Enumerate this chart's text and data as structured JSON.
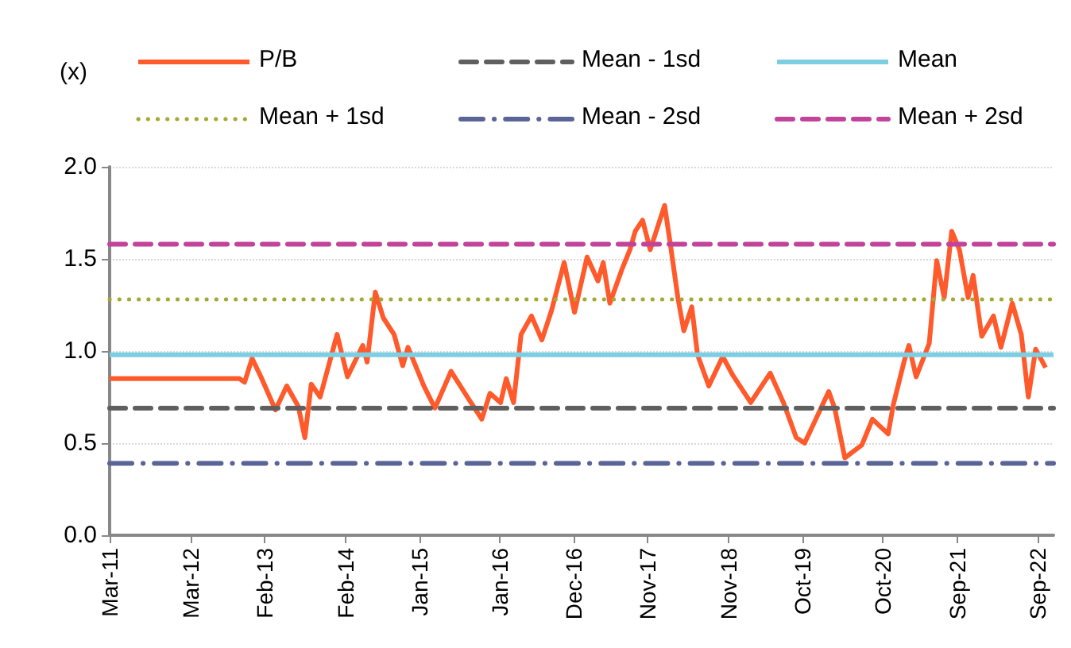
{
  "chart_data": {
    "type": "line",
    "ylabel": "(x)",
    "xlim": [
      "2011-03-01",
      "2022-11-12"
    ],
    "xticks": [
      {
        "value": "2011-03",
        "label": "Mar-11"
      },
      {
        "value": "2012-03",
        "label": "Mar-12"
      },
      {
        "value": "2013-02",
        "label": "Feb-13"
      },
      {
        "value": "2014-02",
        "label": "Feb-14"
      },
      {
        "value": "2015-01",
        "label": "Jan-15"
      },
      {
        "value": "2016-01",
        "label": "Jan-16"
      },
      {
        "value": "2016-12",
        "label": "Dec-16"
      },
      {
        "value": "2017-11",
        "label": "Nov-17"
      },
      {
        "value": "2018-11",
        "label": "Nov-18"
      },
      {
        "value": "2019-10",
        "label": "Oct-19"
      },
      {
        "value": "2020-10",
        "label": "Oct-20"
      },
      {
        "value": "2021-09",
        "label": "Sep-21"
      },
      {
        "value": "2022-09",
        "label": "Sep-22"
      }
    ],
    "ylim": [
      0,
      2
    ],
    "yticks": [
      {
        "value": 0,
        "label": "0.0"
      },
      {
        "value": 0.5,
        "label": "0.5"
      },
      {
        "value": 1,
        "label": "1.0"
      },
      {
        "value": 1.5,
        "label": "1.5"
      },
      {
        "value": 2,
        "label": "2.0"
      }
    ],
    "grid": "y",
    "legend": "top",
    "marker": "none",
    "series": [
      {
        "name": "P/B",
        "color": "#ff5a2c",
        "line_style": "solid",
        "x": [
          "2011-03-01",
          "2012-10-09",
          "2012-11-01",
          "2012-12-05",
          "2013-01-14",
          "2013-03-21",
          "2013-05-11",
          "2013-07-02",
          "2013-08-01",
          "2013-08-30",
          "2013-10-09",
          "2013-12-25",
          "2014-02-10",
          "2014-04-20",
          "2014-05-10",
          "2014-06-16",
          "2014-07-22",
          "2014-09-09",
          "2014-10-18",
          "2014-11-11",
          "2015-01-22",
          "2015-03-13",
          "2015-05-25",
          "2015-08-07",
          "2015-10-11",
          "2015-11-17",
          "2016-01-04",
          "2016-01-30",
          "2016-03-03",
          "2016-04-06",
          "2016-05-23",
          "2016-07-09",
          "2016-08-22",
          "2016-10-18",
          "2016-12-04",
          "2017-01-30",
          "2017-03-20",
          "2017-04-13",
          "2017-05-13",
          "2017-07-09",
          "2017-08-12",
          "2017-09-05",
          "2017-10-08",
          "2017-11-12",
          "2018-01-16",
          "2018-02-11",
          "2018-03-17",
          "2018-04-13",
          "2018-05-19",
          "2018-06-14",
          "2018-08-04",
          "2018-10-06",
          "2018-11-20",
          "2019-02-10",
          "2019-05-09",
          "2019-07-08",
          "2019-09-04",
          "2019-10-12",
          "2020-01-29",
          "2020-02-25",
          "2020-04-11",
          "2020-06-27",
          "2020-08-14",
          "2020-10-24",
          "2020-11-17",
          "2021-01-06",
          "2021-01-26",
          "2021-02-28",
          "2021-04-28",
          "2021-06-01",
          "2021-07-05",
          "2021-08-08",
          "2021-09-12",
          "2021-10-21",
          "2021-11-13",
          "2021-12-22",
          "2022-02-13",
          "2022-03-19",
          "2022-05-09",
          "2022-06-19",
          "2022-07-21",
          "2022-08-23",
          "2022-10-07"
        ],
        "values": [
          0.85,
          0.85,
          0.83,
          0.96,
          0.86,
          0.68,
          0.81,
          0.7,
          0.53,
          0.82,
          0.75,
          1.09,
          0.86,
          1.03,
          0.94,
          1.32,
          1.18,
          1.09,
          0.92,
          1.02,
          0.81,
          0.69,
          0.89,
          0.75,
          0.63,
          0.77,
          0.72,
          0.85,
          0.72,
          1.09,
          1.19,
          1.06,
          1.22,
          1.48,
          1.21,
          1.51,
          1.38,
          1.48,
          1.26,
          1.45,
          1.55,
          1.65,
          1.71,
          1.55,
          1.79,
          1.58,
          1.29,
          1.11,
          1.24,
          0.98,
          0.81,
          0.97,
          0.87,
          0.72,
          0.88,
          0.72,
          0.53,
          0.5,
          0.78,
          0.69,
          0.42,
          0.49,
          0.63,
          0.55,
          0.71,
          0.95,
          1.03,
          0.86,
          1.04,
          1.49,
          1.29,
          1.65,
          1.55,
          1.29,
          1.41,
          1.08,
          1.19,
          1.02,
          1.26,
          1.09,
          0.75,
          1.01,
          0.91
        ]
      },
      {
        "name": "Mean - 1sd",
        "color": "#5f5f5f",
        "line_style": "dashed",
        "x": [
          "2011-03-01",
          "2022-11-12"
        ],
        "values": [
          0.69,
          0.69
        ]
      },
      {
        "name": "Mean",
        "color": "#7ccfe3",
        "line_style": "solid",
        "x": [
          "2011-03-01",
          "2022-11-12"
        ],
        "values": [
          0.98,
          0.98
        ]
      },
      {
        "name": "Mean + 1sd",
        "color": "#a5a832",
        "line_style": "dotted",
        "x": [
          "2011-03-01",
          "2022-11-12"
        ],
        "values": [
          1.28,
          1.28
        ]
      },
      {
        "name": "Mean - 2sd",
        "color": "#5b6496",
        "line_style": "dashdot",
        "x": [
          "2011-03-01",
          "2022-11-12"
        ],
        "values": [
          0.39,
          0.39
        ]
      },
      {
        "name": "Mean + 2sd",
        "color": "#c2449a",
        "line_style": "dashed",
        "x": [
          "2011-03-01",
          "2022-11-12"
        ],
        "values": [
          1.58,
          1.58
        ]
      }
    ]
  }
}
